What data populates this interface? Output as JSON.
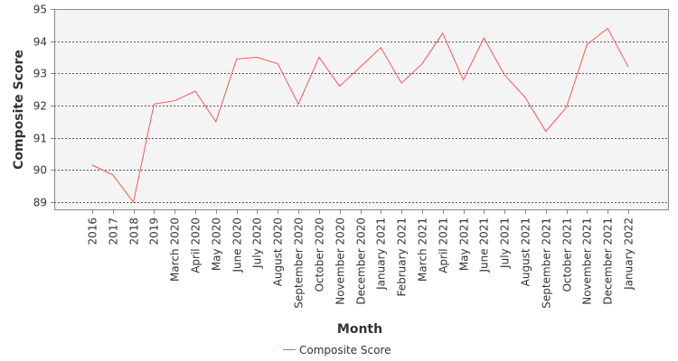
{
  "chart_data": {
    "type": "line",
    "xlabel": "Month",
    "ylabel": "Composite Score",
    "ylim": [
      88.75,
      95
    ],
    "yticks": [
      89,
      90,
      91,
      92,
      93,
      94,
      95
    ],
    "grid": true,
    "legend_position": "bottom-center",
    "categories": [
      "2016",
      "2017",
      "2018",
      "2019",
      "March 2020",
      "April 2020",
      "May 2020",
      "June 2020",
      "July 2020",
      "August 2020",
      "September 2020",
      "October 2020",
      "November 2020",
      "December 2020",
      "January 2021",
      "February 2021",
      "March 2021",
      "April 2021",
      "May 2021",
      "June 2021",
      "July 2021",
      "August 2021",
      "September 2021",
      "October 2021",
      "November 2021",
      "December 2021",
      "January 2022"
    ],
    "series": [
      {
        "name": "Composite Score",
        "color": "#ff5555",
        "values": [
          90.15,
          89.85,
          89.0,
          92.05,
          92.15,
          92.45,
          91.5,
          93.45,
          93.5,
          93.3,
          92.05,
          93.5,
          92.6,
          93.2,
          93.8,
          92.7,
          93.3,
          94.25,
          92.8,
          94.1,
          92.95,
          92.25,
          91.2,
          91.95,
          93.9,
          94.4,
          93.2
        ]
      }
    ]
  }
}
